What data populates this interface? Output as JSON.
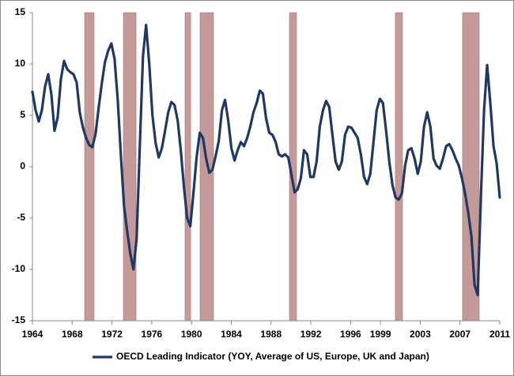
{
  "chart_data": {
    "type": "line",
    "legend_position": "bottom",
    "grid": false,
    "xlim": [
      1964,
      2011
    ],
    "ylim": [
      -15,
      15
    ],
    "yticks": [
      -15,
      -10,
      -5,
      0,
      5,
      10,
      15
    ],
    "xticks": [
      1964,
      1968,
      1972,
      1976,
      1980,
      1984,
      1988,
      1992,
      1996,
      1999,
      2003,
      2007,
      2011
    ],
    "shaded_periods": {
      "color": "#c49a99",
      "ranges": [
        [
          1969.25,
          1970.2
        ],
        [
          1973.15,
          1974.42
        ],
        [
          1979.35,
          1979.91
        ],
        [
          1980.86,
          1982.21
        ],
        [
          1989.85,
          1990.56
        ],
        [
          2000.5,
          2001.22
        ],
        [
          2007.26,
          2008.93
        ]
      ]
    },
    "x": [
      1964.0,
      1964.32,
      1964.64,
      1964.95,
      1965.27,
      1965.59,
      1965.91,
      1966.22,
      1966.54,
      1966.86,
      1967.18,
      1967.49,
      1967.81,
      1968.13,
      1968.45,
      1968.76,
      1969.08,
      1969.4,
      1969.72,
      1970.03,
      1970.35,
      1970.67,
      1970.99,
      1971.3,
      1971.62,
      1971.94,
      1972.26,
      1972.58,
      1972.89,
      1973.21,
      1973.53,
      1973.85,
      1974.16,
      1974.48,
      1974.8,
      1975.12,
      1975.43,
      1975.75,
      1976.07,
      1976.39,
      1976.7,
      1977.02,
      1977.34,
      1977.66,
      1977.97,
      1978.29,
      1978.61,
      1978.93,
      1979.24,
      1979.56,
      1979.88,
      1980.2,
      1980.52,
      1980.83,
      1981.15,
      1981.47,
      1981.79,
      1982.1,
      1982.42,
      1982.74,
      1983.06,
      1983.37,
      1983.69,
      1984.01,
      1984.33,
      1984.64,
      1984.96,
      1985.28,
      1985.6,
      1985.91,
      1986.23,
      1986.55,
      1986.87,
      1987.18,
      1987.5,
      1987.82,
      1988.14,
      1988.46,
      1988.77,
      1989.09,
      1989.41,
      1989.73,
      1990.04,
      1990.36,
      1990.68,
      1991.0,
      1991.31,
      1991.63,
      1991.95,
      1992.27,
      1992.58,
      1992.9,
      1993.22,
      1993.54,
      1993.85,
      1994.17,
      1994.49,
      1994.81,
      1995.12,
      1995.44,
      1995.76,
      1996.08,
      1996.4,
      1996.71,
      1997.03,
      1997.35,
      1997.67,
      1997.98,
      1998.3,
      1998.62,
      1998.94,
      1999.25,
      1999.57,
      1999.89,
      2000.21,
      2000.52,
      2000.84,
      2001.16,
      2001.48,
      2001.79,
      2002.11,
      2002.43,
      2002.75,
      2003.06,
      2003.38,
      2003.7,
      2004.02,
      2004.34,
      2004.65,
      2004.97,
      2005.29,
      2005.61,
      2005.92,
      2006.24,
      2006.56,
      2006.88,
      2007.19,
      2007.51,
      2007.83,
      2008.15,
      2008.46,
      2008.78,
      2009.1,
      2009.42,
      2009.73,
      2010.05,
      2010.37,
      2010.69,
      2011.0
    ],
    "series": [
      {
        "name": "OECD Leading Indicator (YOY, Average of US, Europe, UK and Japan)",
        "color": "#1f3864",
        "values": [
          7.3,
          5.5,
          4.4,
          5.5,
          7.8,
          9.0,
          7.0,
          3.5,
          4.8,
          8.5,
          10.3,
          9.5,
          9.2,
          9.0,
          8.2,
          5.3,
          3.8,
          2.8,
          2.1,
          1.9,
          3.2,
          5.8,
          8.2,
          10.2,
          11.3,
          12.0,
          10.5,
          6.5,
          1.2,
          -3.8,
          -6.3,
          -8.5,
          -10.0,
          -7.0,
          2.0,
          10.8,
          13.8,
          10.0,
          5.0,
          2.3,
          0.9,
          1.8,
          3.5,
          5.3,
          6.3,
          6.0,
          4.5,
          1.5,
          -2.0,
          -5.0,
          -5.8,
          -2.5,
          1.0,
          3.3,
          2.8,
          0.8,
          -0.6,
          -0.3,
          1.0,
          2.5,
          5.5,
          6.5,
          4.5,
          1.8,
          0.6,
          1.6,
          2.4,
          2.0,
          2.8,
          3.9,
          5.3,
          6.2,
          7.4,
          7.1,
          4.7,
          3.3,
          3.1,
          2.4,
          1.2,
          1.0,
          1.2,
          0.9,
          -0.7,
          -2.5,
          -2.2,
          -1.1,
          1.6,
          1.2,
          -1.0,
          -1.0,
          0.5,
          3.9,
          5.5,
          6.4,
          5.8,
          3.1,
          0.5,
          -0.3,
          0.5,
          3.1,
          3.9,
          3.8,
          3.3,
          2.8,
          1.2,
          -1.0,
          -1.7,
          -0.7,
          2.4,
          5.5,
          6.6,
          6.2,
          3.5,
          0.5,
          -1.8,
          -3.0,
          -3.2,
          -2.6,
          0.1,
          1.6,
          1.8,
          0.8,
          -0.7,
          0.5,
          3.9,
          5.3,
          3.9,
          0.8,
          0.1,
          -0.2,
          0.8,
          2.0,
          2.2,
          1.6,
          0.8,
          0.1,
          -1.1,
          -2.6,
          -4.5,
          -6.8,
          -11.5,
          -12.5,
          -3.0,
          5.5,
          9.9,
          6.2,
          2.0,
          0.3,
          -3.0
        ]
      }
    ]
  }
}
